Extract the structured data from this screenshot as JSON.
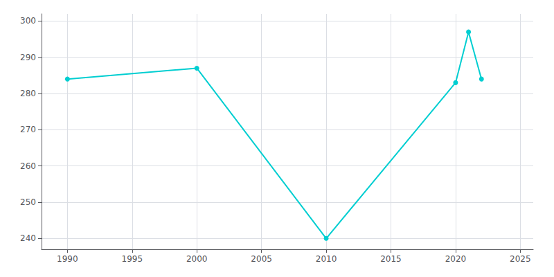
{
  "chart_data": {
    "type": "line",
    "x": [
      1990,
      2000,
      2010,
      2020,
      2021,
      2022
    ],
    "values": [
      284,
      287,
      240,
      283,
      297,
      284
    ],
    "color": "#00CED1",
    "marker": "circle",
    "xlim": [
      1988,
      2026
    ],
    "xticks": [
      1990,
      1995,
      2000,
      2005,
      2010,
      2015,
      2020,
      2025
    ],
    "ylim": [
      237,
      302
    ],
    "yticks": [
      240,
      250,
      260,
      270,
      280,
      290,
      300
    ],
    "grid": true
  }
}
